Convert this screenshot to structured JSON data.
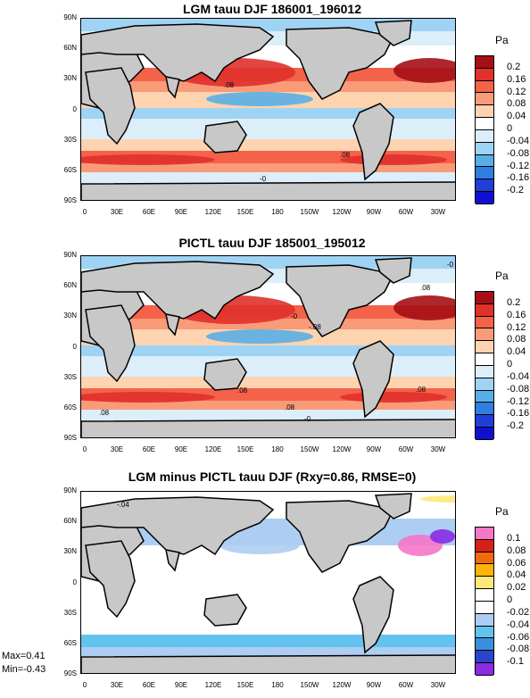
{
  "panels": [
    {
      "title": "LGM tauu DJF 186001_196012",
      "units": "Pa",
      "colorbar": [
        "0.2",
        "0.16",
        "0.12",
        "0.08",
        "0.04",
        "0",
        "-0.04",
        "-0.08",
        "-0.12",
        "-0.16",
        "-0.2"
      ],
      "colors": [
        "#a50f15",
        "#e0312b",
        "#f4624a",
        "#f99b79",
        "#fdd3b0",
        "#ffffff",
        "#dbeefa",
        "#9fd3f3",
        "#5aaee6",
        "#2f7fe0",
        "#1f3fd8",
        "#1010d0"
      ],
      "annotations": [
        ".08",
        ".08",
        "-0"
      ]
    },
    {
      "title": "PICTL tauu DJF 185001_195012",
      "units": "Pa",
      "colorbar": [
        "0.2",
        "0.16",
        "0.12",
        "0.08",
        "0.04",
        "0",
        "-0.04",
        "-0.08",
        "-0.12",
        "-0.16",
        "-0.2"
      ],
      "colors": [
        "#a50f15",
        "#e0312b",
        "#f4624a",
        "#f99b79",
        "#fdd3b0",
        "#ffffff",
        "#dbeefa",
        "#9fd3f3",
        "#5aaee6",
        "#2f7fe0",
        "#1f3fd8",
        "#1010d0"
      ],
      "annotations": [
        ".08",
        "-0",
        "-.08",
        ".08",
        ".08",
        ".08",
        ".08",
        "-0",
        "-0"
      ]
    },
    {
      "title": "LGM minus PICTL tauu DJF (Rxy=0.86, RMSE=0)",
      "units": "Pa",
      "colorbar": [
        "0.1",
        "0.08",
        "0.06",
        "0.04",
        "0.02",
        "0",
        "-0.02",
        "-0.04",
        "-0.06",
        "-0.08",
        "-0.1"
      ],
      "colors": [
        "#f477c8",
        "#d6201a",
        "#f46a0b",
        "#fbb40a",
        "#fde97a",
        "#ffffff",
        "#ffffff",
        "#aecdf2",
        "#62c3ef",
        "#3c8fe0",
        "#2a46c8",
        "#8a2be2"
      ],
      "annotations": [
        "-.04"
      ]
    }
  ],
  "lat_labels": [
    "90N",
    "60N",
    "30N",
    "0",
    "30S",
    "60S",
    "90S"
  ],
  "lon_labels": [
    "0",
    "30E",
    "60E",
    "90E",
    "120E",
    "150E",
    "180",
    "150W",
    "120W",
    "90W",
    "60W",
    "30W"
  ],
  "stats": {
    "max": "Max=0.41",
    "min": "Min=-0.43"
  }
}
